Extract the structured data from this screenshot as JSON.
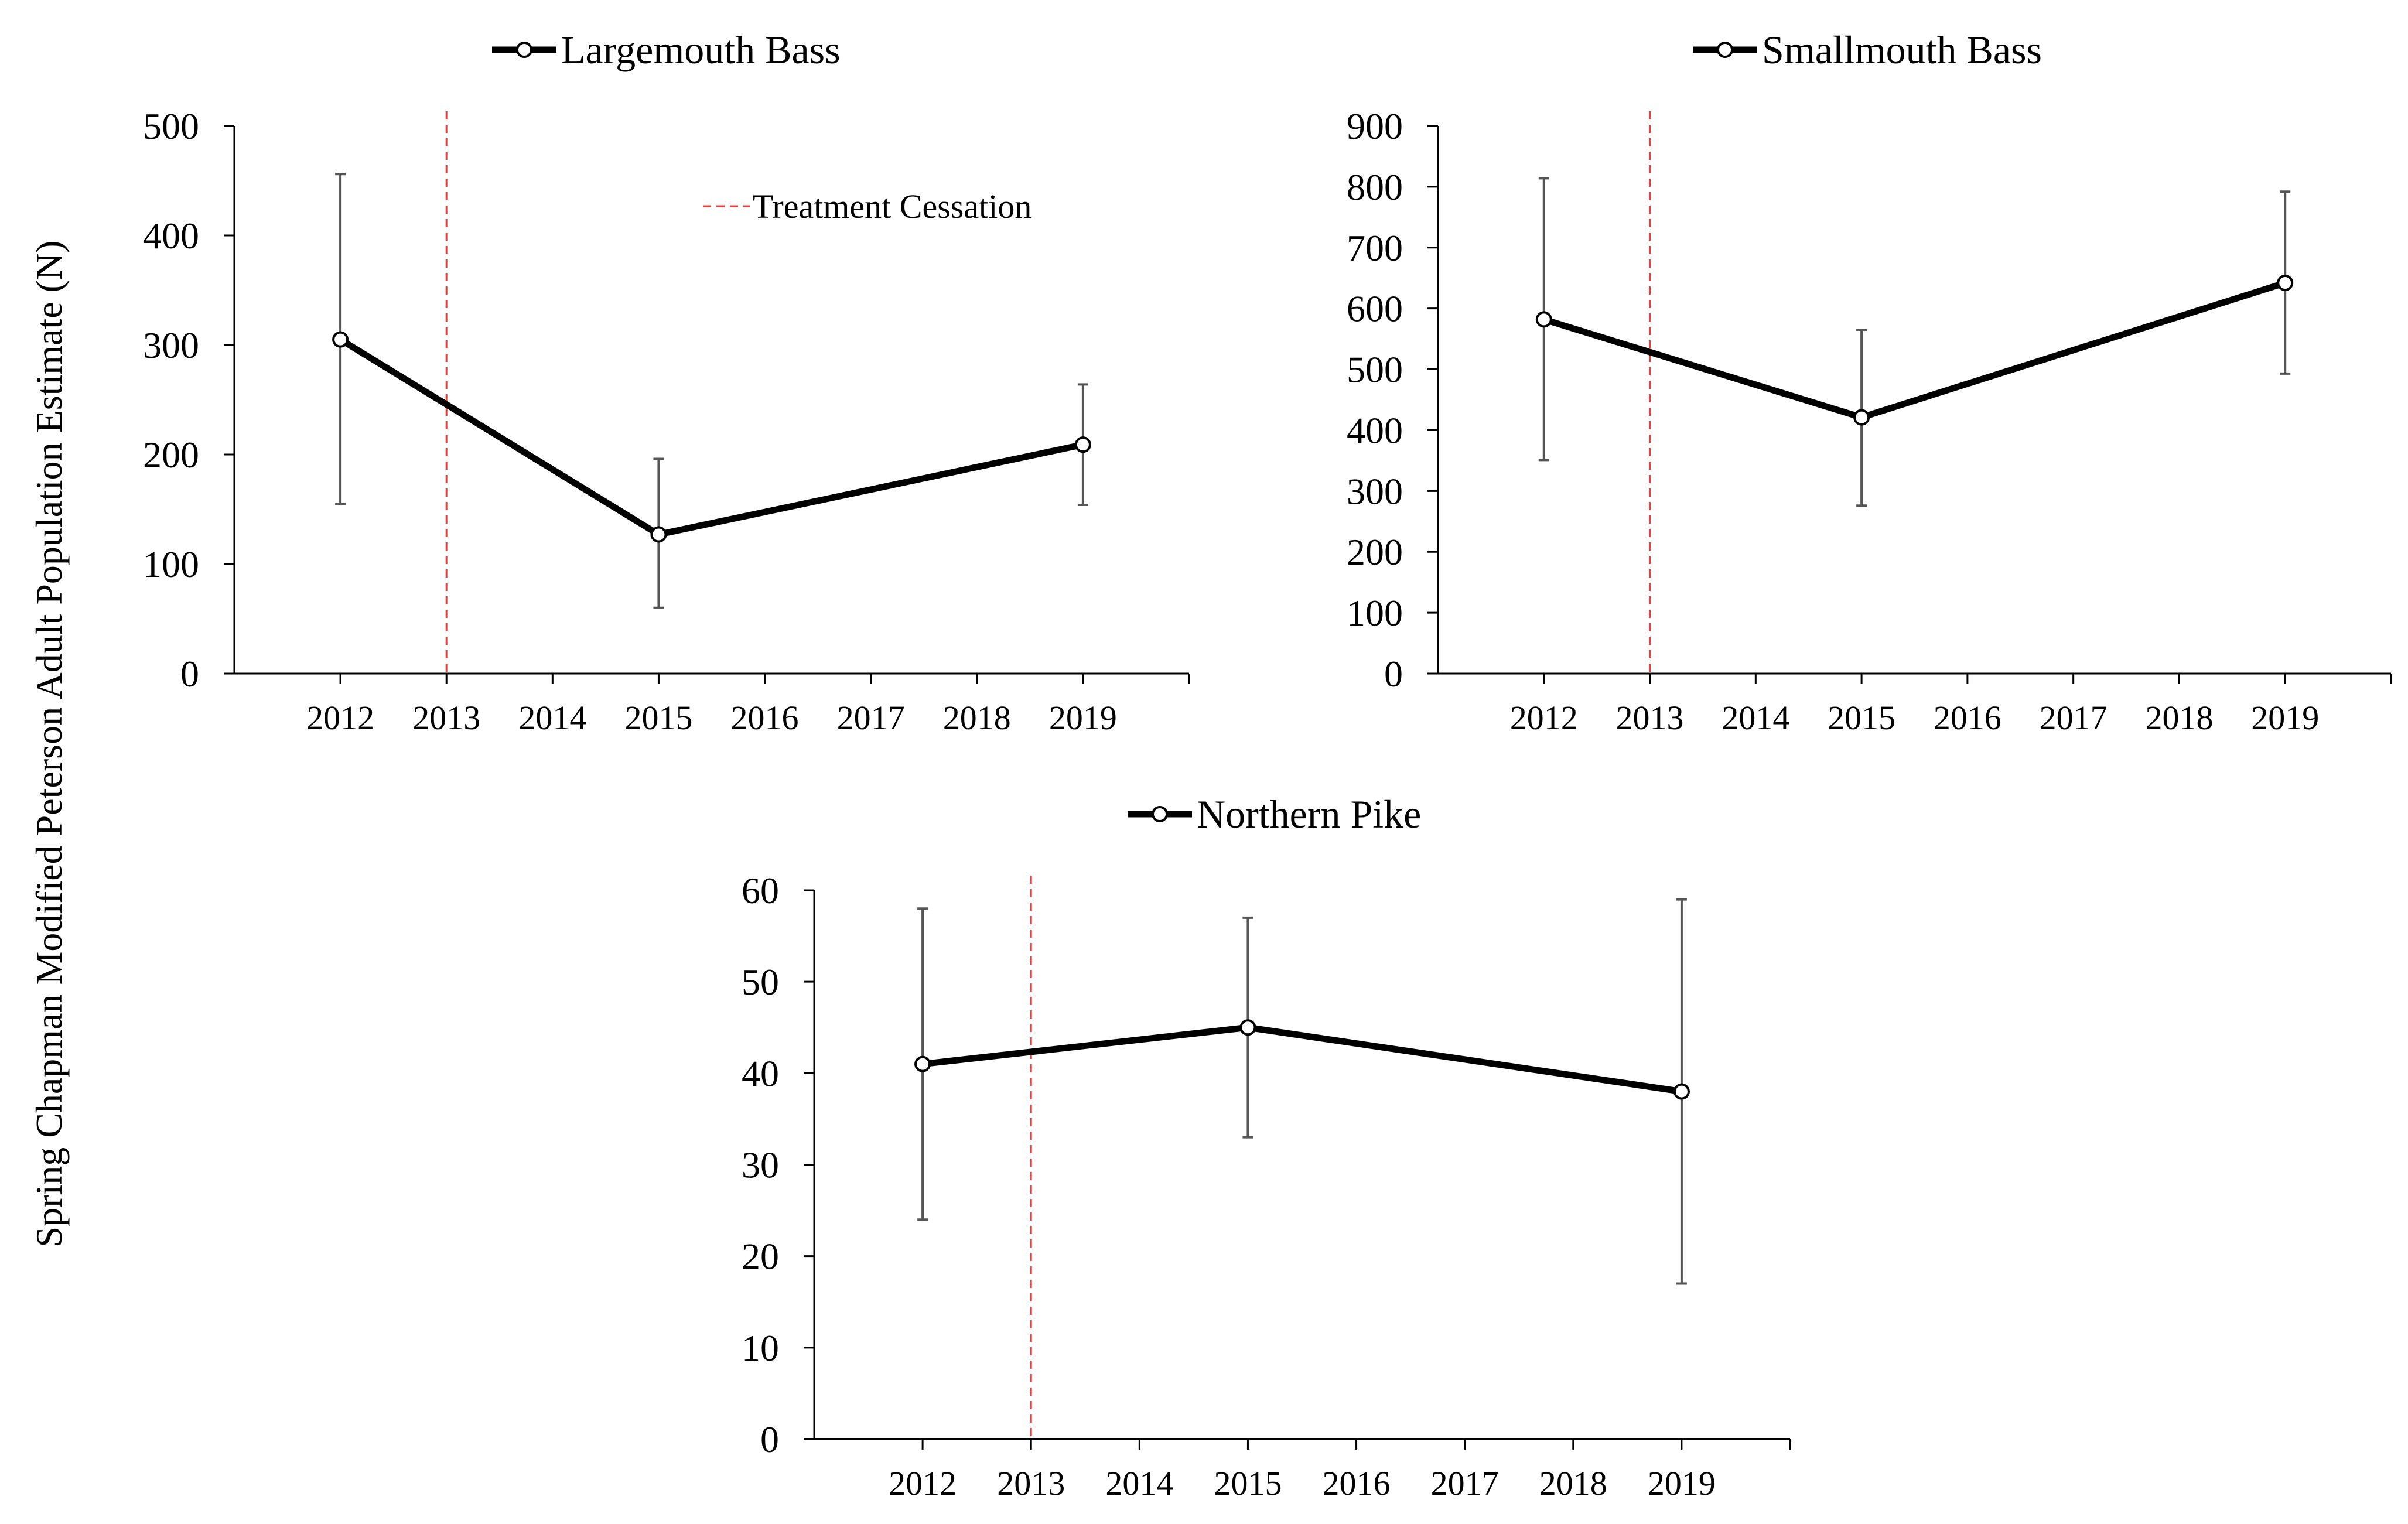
{
  "figure": {
    "shared_ylabel": "Spring Chapman Modified Peterson Adult Population Estimate (N)",
    "treatment_label": "Treatment Cessation",
    "treatment_year": 2013,
    "colors": {
      "line": "#000000",
      "marker_fill": "#ffffff",
      "error_bar": "#555555",
      "treatment_line": "#e8403c",
      "axis": "#000000"
    }
  },
  "chart_data": [
    {
      "type": "line",
      "title": "Largemouth Bass",
      "categories": [
        "2012",
        "2013",
        "2014",
        "2015",
        "2016",
        "2017",
        "2018",
        "2019"
      ],
      "series": [
        {
          "name": "Largemouth Bass",
          "x": [
            2012,
            2015,
            2019
          ],
          "values": [
            305,
            127,
            209
          ],
          "error_low": [
            155,
            60,
            154
          ],
          "error_high": [
            456,
            196,
            264
          ]
        }
      ],
      "yticks": [
        "0",
        "100",
        "200",
        "300",
        "400",
        "500"
      ],
      "ylim": [
        0,
        500
      ],
      "xlabel": "",
      "ylabel": "Spring Chapman Modified Peterson Adult Population Estimate (N)",
      "treatment_cessation": 2013,
      "legend": "top-center",
      "grid": false
    },
    {
      "type": "line",
      "title": "Smallmouth Bass",
      "categories": [
        "2012",
        "2013",
        "2014",
        "2015",
        "2016",
        "2017",
        "2018",
        "2019"
      ],
      "series": [
        {
          "name": "Smallmouth Bass",
          "x": [
            2012,
            2015,
            2019
          ],
          "values": [
            582,
            421,
            642
          ],
          "error_low": [
            351,
            276,
            493
          ],
          "error_high": [
            814,
            565,
            792
          ]
        }
      ],
      "yticks": [
        "0",
        "100",
        "200",
        "300",
        "400",
        "500",
        "600",
        "700",
        "800",
        "900"
      ],
      "ylim": [
        0,
        900
      ],
      "xlabel": "",
      "ylabel": "Spring Chapman Modified Peterson Adult Population Estimate (N)",
      "treatment_cessation": 2013,
      "legend": "top-center",
      "grid": false
    },
    {
      "type": "line",
      "title": "Northern Pike",
      "categories": [
        "2012",
        "2013",
        "2014",
        "2015",
        "2016",
        "2017",
        "2018",
        "2019"
      ],
      "series": [
        {
          "name": "Northern Pike",
          "x": [
            2012,
            2015,
            2019
          ],
          "values": [
            41,
            45,
            38
          ],
          "error_low": [
            24,
            33,
            17
          ],
          "error_high": [
            58,
            57,
            59
          ]
        }
      ],
      "yticks": [
        "0",
        "10",
        "20",
        "30",
        "40",
        "50",
        "60"
      ],
      "ylim": [
        0,
        60
      ],
      "xlabel": "",
      "ylabel": "Spring Chapman Modified Peterson Adult Population Estimate (N)",
      "treatment_cessation": 2013,
      "legend": "top-center",
      "grid": false
    }
  ]
}
